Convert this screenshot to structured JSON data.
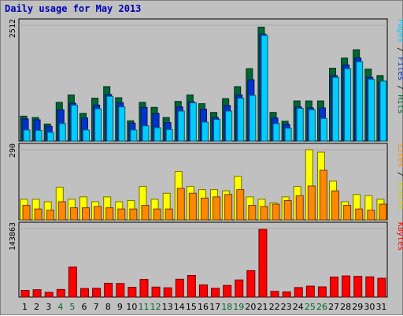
{
  "title": "Daily usage for May 2013",
  "chart_data": {
    "type": "bar",
    "categories": [
      "1",
      "2",
      "3",
      "4",
      "5",
      "6",
      "7",
      "8",
      "9",
      "10",
      "11",
      "12",
      "13",
      "14",
      "15",
      "16",
      "17",
      "18",
      "19",
      "20",
      "21",
      "22",
      "23",
      "24",
      "25",
      "26",
      "27",
      "28",
      "29",
      "30",
      "31"
    ],
    "weekend_days": [
      "4",
      "5",
      "11",
      "12",
      "18",
      "19",
      "25",
      "26"
    ],
    "colors": {
      "hits": "#006633",
      "files": "#0033cc",
      "pages": "#00ccff",
      "visits": "#ffff00",
      "sites": "#ff8800",
      "kbytes": "#ff0000",
      "weekend_label": "#006633",
      "weekday_label": "#000000"
    },
    "panels": [
      {
        "id": "usage",
        "max_label": "2512",
        "ymax": 2512,
        "legend": [
          {
            "text": "Hits",
            "color": "#006633"
          },
          {
            "text": "Files",
            "color": "#0033cc"
          },
          {
            "text": "Pages",
            "color": "#00ccff"
          }
        ],
        "series": [
          {
            "name": "Hits",
            "values": [
              540,
              510,
              370,
              840,
              1000,
              600,
              930,
              1180,
              940,
              440,
              840,
              730,
              510,
              860,
              1000,
              810,
              620,
              920,
              1180,
              1570,
              2470,
              620,
              430,
              870,
              870,
              870,
              1580,
              1800,
              1980,
              1560,
              1420
            ]
          },
          {
            "name": "Files",
            "values": [
              480,
              460,
              320,
              680,
              820,
              500,
              780,
              1010,
              830,
              390,
              730,
              600,
              400,
              740,
              850,
              690,
              510,
              770,
              1000,
              1330,
              2320,
              500,
              360,
              740,
              720,
              720,
              1420,
              1650,
              1800,
              1380,
              1260
            ]
          },
          {
            "name": "Pages",
            "values": [
              240,
              230,
              190,
              380,
              780,
              240,
              700,
              970,
              740,
              240,
              330,
              290,
              250,
              650,
              830,
              410,
              470,
              650,
              930,
              990,
              2290,
              380,
              280,
              710,
              680,
              490,
              1380,
              1570,
              1720,
              1340,
              1300
            ]
          }
        ]
      },
      {
        "id": "visits",
        "max_label": "290",
        "ymax": 290,
        "legend": [
          {
            "text": "Visits",
            "color": "#cccc00"
          },
          {
            "text": "Sites",
            "color": "#ff8800"
          }
        ],
        "series": [
          {
            "name": "Visits",
            "values": [
              85,
              85,
              75,
              135,
              85,
              95,
              75,
              95,
              75,
              80,
              138,
              85,
              110,
              200,
              138,
              125,
              125,
              120,
              180,
              95,
              85,
              70,
              95,
              138,
              290,
              280,
              160,
              75,
              105,
              100,
              85
            ]
          },
          {
            "name": "Sites",
            "values": [
              60,
              45,
              40,
              75,
              50,
              50,
              55,
              50,
              45,
              45,
              60,
              45,
              45,
              130,
              110,
              90,
              95,
              105,
              125,
              60,
              55,
              65,
              80,
              100,
              140,
              205,
              120,
              60,
              45,
              40,
              65
            ]
          }
        ]
      },
      {
        "id": "kbytes",
        "max_label": "143863",
        "ymax": 143863,
        "legend": [
          {
            "text": "KBytes",
            "color": "#ff0000"
          }
        ],
        "series": [
          {
            "name": "KBytes",
            "values": [
              14000,
              15500,
              10000,
              16000,
              63000,
              18000,
              18500,
              29000,
              28500,
              20500,
              37000,
              21000,
              19500,
              37500,
              45500,
              25500,
              18500,
              24500,
              36000,
              55500,
              142000,
              12000,
              11000,
              20000,
              23000,
              21500,
              42000,
              44500,
              43500,
              42500,
              39500
            ]
          }
        ]
      }
    ]
  }
}
